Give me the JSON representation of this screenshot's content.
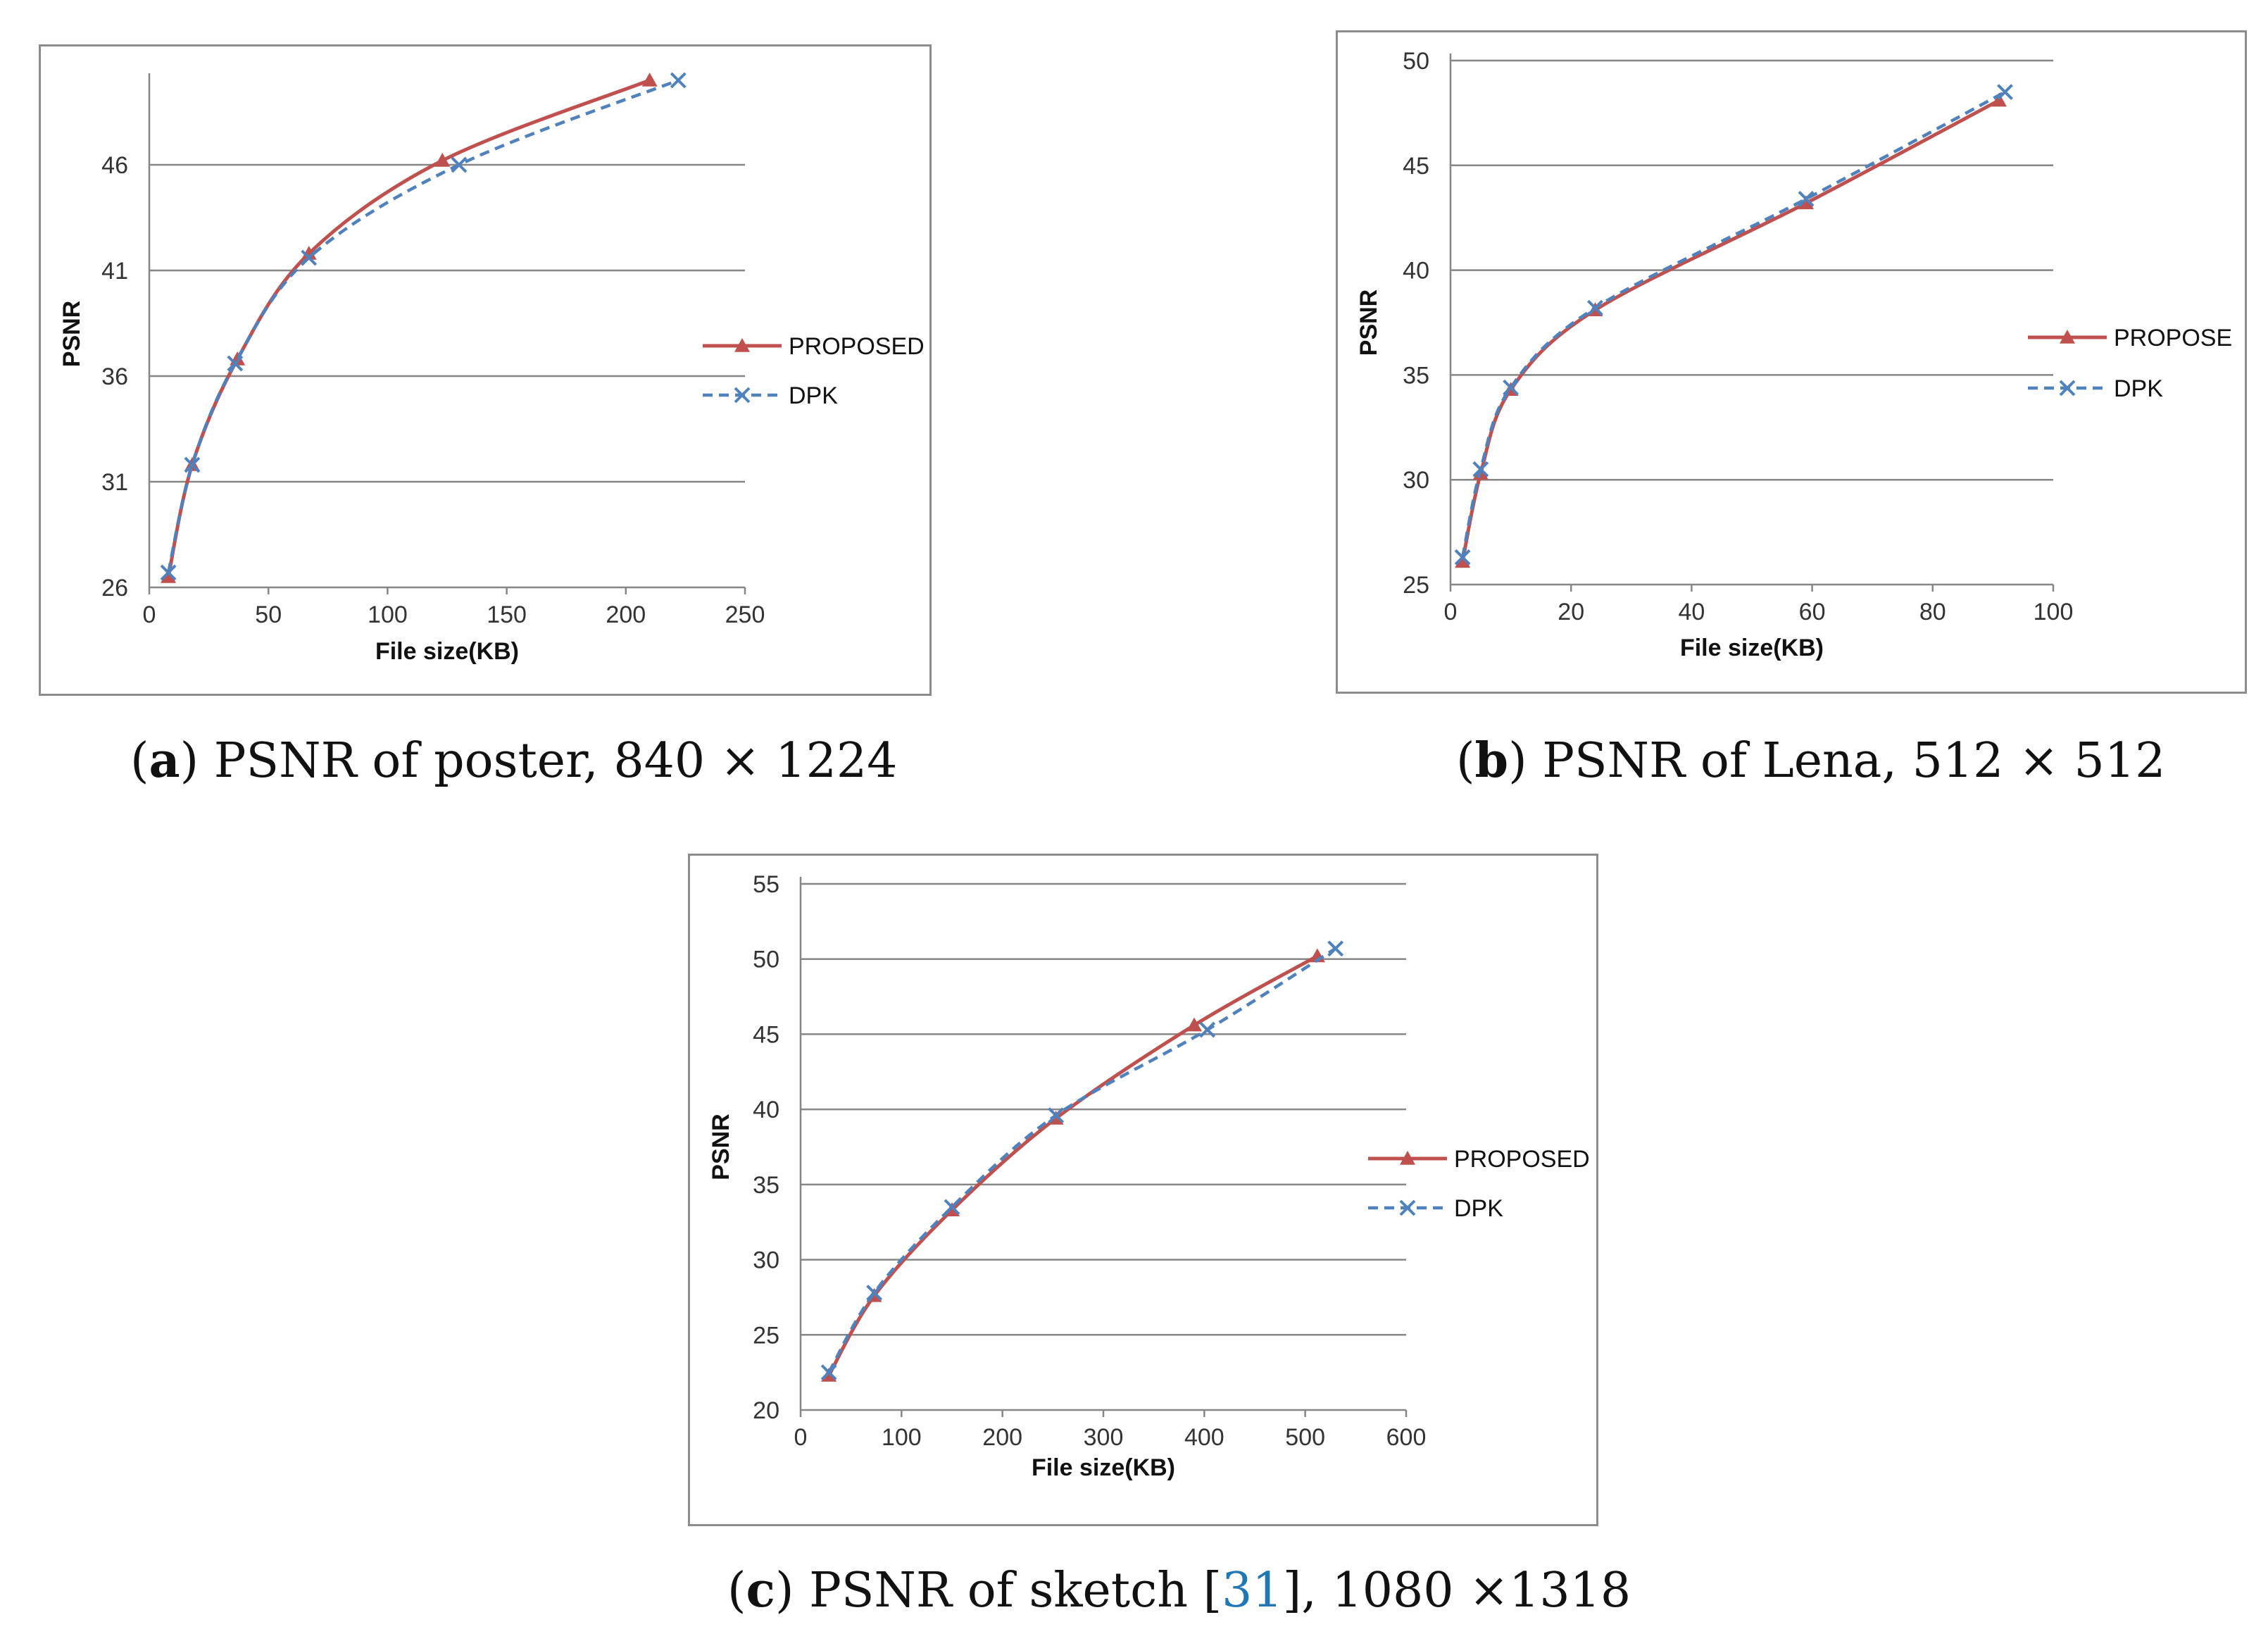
{
  "colors": {
    "proposed": "#c0504d",
    "dpk": "#4f81bd",
    "grid": "#868686"
  },
  "charts": [
    {
      "id": "a",
      "caption": {
        "label": "a",
        "text": ") PSNR of poster, 840 × 1224",
        "open": "("
      },
      "chart_data": {
        "type": "line",
        "xlabel": "File size(KB)",
        "ylabel": "PSNR",
        "xlim": [
          0,
          250
        ],
        "ylim": [
          26,
          50
        ],
        "xticks": [
          0,
          50,
          100,
          150,
          200,
          250
        ],
        "yticks": [
          26,
          31,
          36,
          41,
          46
        ],
        "yticks_labels": [
          "26",
          "31",
          "36",
          "41",
          "46"
        ],
        "xticks_labels": [
          "0",
          "50",
          "100",
          "150",
          "200",
          "250"
        ],
        "grid": true,
        "legend": "right",
        "series": [
          {
            "name": "PROPOSED",
            "x": [
              8,
              18,
              37,
              67,
              123,
              210
            ],
            "y": [
              26.5,
              31.8,
              36.8,
              41.8,
              46.2,
              50.0
            ]
          },
          {
            "name": "DPK",
            "x": [
              8,
              18,
              36,
              67,
              130,
              222
            ],
            "y": [
              26.7,
              31.8,
              36.6,
              41.6,
              46.0,
              50.0
            ]
          }
        ]
      }
    },
    {
      "id": "b",
      "caption": {
        "label": "b",
        "text": ") PSNR of Lena, 512 × 512",
        "open": "("
      },
      "chart_data": {
        "type": "line",
        "xlabel": "File size(KB)",
        "ylabel": "PSNR",
        "xlim": [
          0,
          100
        ],
        "ylim": [
          25,
          50
        ],
        "xticks": [
          0,
          20,
          40,
          60,
          80,
          100
        ],
        "yticks": [
          25,
          30,
          35,
          40,
          45,
          50
        ],
        "yticks_labels": [
          "25",
          "30",
          "35",
          "40",
          "45",
          "50"
        ],
        "xticks_labels": [
          "0",
          "20",
          "40",
          "60",
          "80",
          "100"
        ],
        "grid": true,
        "legend": "right",
        "series": [
          {
            "name": "PROPOSE",
            "x": [
              2,
              5,
              10,
              24,
              59,
              91
            ],
            "y": [
              26.1,
              30.3,
              34.3,
              38.1,
              43.2,
              48.1
            ]
          },
          {
            "name": "DPK",
            "x": [
              2,
              5,
              10,
              24,
              59,
              92
            ],
            "y": [
              26.3,
              30.5,
              34.4,
              38.2,
              43.4,
              48.5
            ]
          }
        ]
      }
    },
    {
      "id": "c",
      "caption": {
        "label": "c",
        "text_before": ") PSNR of sketch [",
        "ref": "31",
        "text_after": "], 1080 ×1318",
        "open": "("
      },
      "chart_data": {
        "type": "line",
        "xlabel": "File size(KB)",
        "ylabel": "PSNR",
        "xlim": [
          0,
          600
        ],
        "ylim": [
          20,
          55
        ],
        "xticks": [
          0,
          100,
          200,
          300,
          400,
          500,
          600
        ],
        "yticks": [
          20,
          25,
          30,
          35,
          40,
          45,
          50,
          55
        ],
        "yticks_labels": [
          "20",
          "25",
          "30",
          "35",
          "40",
          "45",
          "50",
          "55"
        ],
        "xticks_labels": [
          "0",
          "100",
          "200",
          "300",
          "400",
          "500",
          "600"
        ],
        "grid": true,
        "legend": "right",
        "series": [
          {
            "name": "PROPOSED",
            "x": [
              28,
              73,
              150,
              253,
              390,
              512
            ],
            "y": [
              22.3,
              27.6,
              33.3,
              39.4,
              45.6,
              50.2
            ]
          },
          {
            "name": "DPK",
            "x": [
              28,
              73,
              150,
              253,
              403,
              530
            ],
            "y": [
              22.5,
              27.8,
              33.5,
              39.6,
              45.3,
              50.7
            ]
          }
        ]
      }
    }
  ]
}
